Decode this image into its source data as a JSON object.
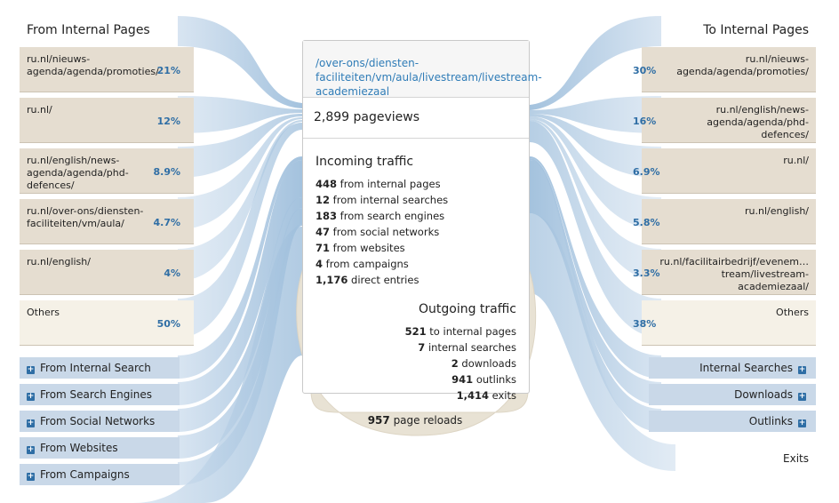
{
  "left_heading": "From Internal Pages",
  "right_heading": "To Internal Pages",
  "incoming_pages": [
    {
      "url": "ru.nl/nieuws-agenda/agenda/promoties/",
      "pct": "21%"
    },
    {
      "url": "ru.nl/",
      "pct": "12%"
    },
    {
      "url": "ru.nl/english/news-agenda/agenda/phd-defences/",
      "pct": "8.9%"
    },
    {
      "url": "ru.nl/over-ons/diensten-faciliteiten/vm/aula/",
      "pct": "4.7%"
    },
    {
      "url": "ru.nl/english/",
      "pct": "4%"
    },
    {
      "url": "Others",
      "pct": "50%"
    }
  ],
  "outgoing_pages": [
    {
      "url": "ru.nl/nieuws-agenda/agenda/promoties/",
      "pct": "30%"
    },
    {
      "url": "ru.nl/english/news-agenda/agenda/phd-defences/",
      "pct": "16%"
    },
    {
      "url": "ru.nl/",
      "pct": "6.9%"
    },
    {
      "url": "ru.nl/english/",
      "pct": "5.8%"
    },
    {
      "url": "ru.nl/facilitairbedrijf/evenem… tream/livestream-academiezaal/",
      "pct": "3.3%"
    },
    {
      "url": "Others",
      "pct": "38%"
    }
  ],
  "incoming_sources": [
    "From Internal Search",
    "From Search Engines",
    "From Social Networks",
    "From Websites",
    "From Campaigns"
  ],
  "outgoing_targets": [
    "Internal Searches",
    "Downloads",
    "Outlinks"
  ],
  "center": {
    "url": "/over-ons/diensten-faciliteiten/vm/aula/livestream/livestream-academiezaal",
    "pageviews": "2,899 pageviews",
    "incoming_title": "Incoming traffic",
    "incoming": [
      {
        "value": "448",
        "label": " from internal pages"
      },
      {
        "value": "12",
        "label": " from internal searches"
      },
      {
        "value": "183",
        "label": " from search engines"
      },
      {
        "value": "47",
        "label": " from social networks"
      },
      {
        "value": "71",
        "label": " from websites"
      },
      {
        "value": "4",
        "label": " from campaigns"
      },
      {
        "value": "1,176",
        "label": " direct entries"
      }
    ],
    "outgoing_title": "Outgoing traffic",
    "outgoing": [
      {
        "value": "521",
        "label": " to internal pages"
      },
      {
        "value": "7",
        "label": " internal searches"
      },
      {
        "value": "2",
        "label": " downloads"
      },
      {
        "value": "941",
        "label": " outlinks"
      },
      {
        "value": "1,414",
        "label": " exits"
      }
    ]
  },
  "reloads": {
    "value": "957",
    "label": " page reloads"
  },
  "exits_label": "Exits",
  "colors": {
    "page_box": "#e5ddd0",
    "others_box": "#f5f1e7",
    "source_box": "#c9d8e8",
    "link_blue": "#2f7cb7",
    "percent_blue": "#2f6ea5"
  }
}
